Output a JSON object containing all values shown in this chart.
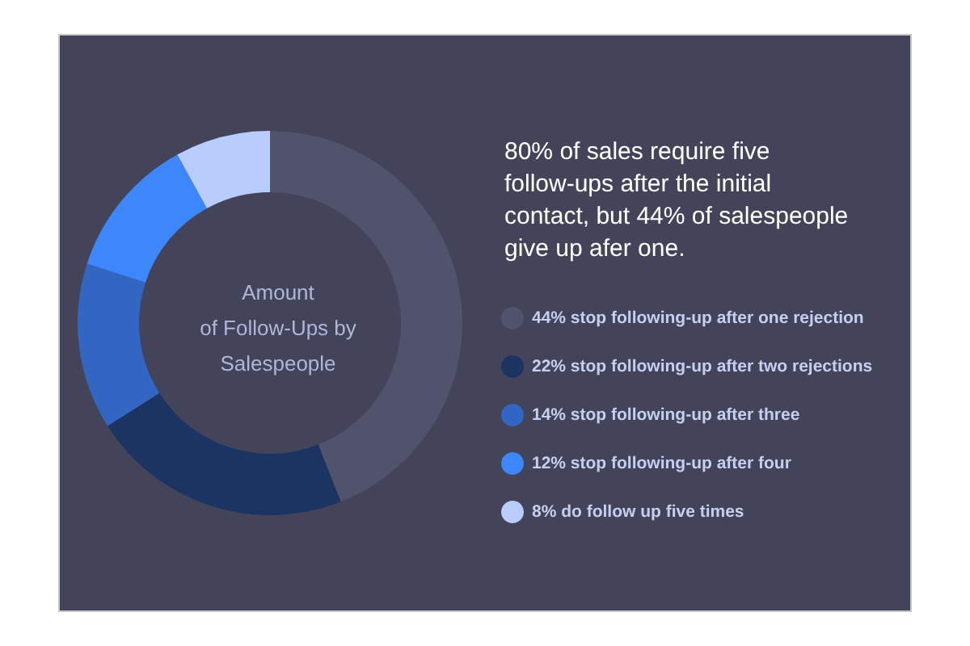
{
  "chart_data": {
    "type": "donut",
    "title": "80% of sales require five\nfollow-ups after the initial\ncontact, but 44% of salespeople\ngive up afer one.",
    "subtitle": "Amount\nof Follow-Ups by\nSalespeople",
    "categories": [
      "44% stop following-up after one rejection",
      "22% stop following-up after two rejections",
      "14% stop following-up after three",
      "12% stop following-up after four",
      "8% do follow up five times"
    ],
    "values": [
      44,
      22,
      14,
      12,
      8
    ],
    "colors": [
      "#50536b",
      "#1c3461",
      "#3366c2",
      "#3e86fb",
      "#b8cdfb"
    ],
    "legend": "right"
  }
}
